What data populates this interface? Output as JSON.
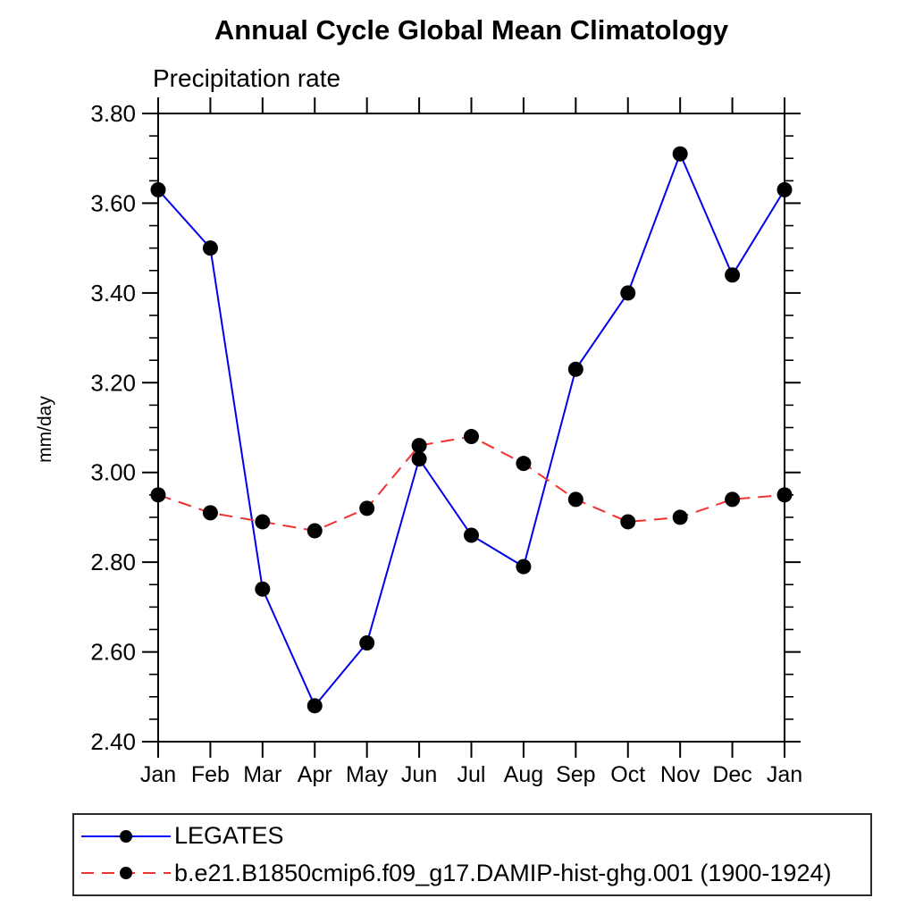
{
  "header": {
    "title": "Annual Cycle Global Mean Climatology",
    "subtitle": "Precipitation rate"
  },
  "chart_data": {
    "type": "line",
    "title": "Annual Cycle Global Mean Climatology",
    "subtitle": "Precipitation rate",
    "ylabel": "mm/day",
    "xlabel": "",
    "x_categories": [
      "Jan",
      "Feb",
      "Mar",
      "Apr",
      "May",
      "Jun",
      "Jul",
      "Aug",
      "Sep",
      "Oct",
      "Nov",
      "Dec",
      "Jan"
    ],
    "ylim": [
      2.4,
      3.8
    ],
    "ytick_interval": 0.2,
    "yminor_interval": 0.05,
    "ytick_labels": [
      "3.80",
      "3.60",
      "3.40",
      "3.20",
      "3.00",
      "2.80",
      "2.60",
      "2.40"
    ],
    "grid": false,
    "legend_position": "bottom-left",
    "series": [
      {
        "name": "LEGATES",
        "style": "solid",
        "color": "#0000EE",
        "marker": "circle",
        "marker_color": "#000000",
        "values": [
          3.63,
          3.5,
          2.74,
          2.48,
          2.62,
          3.03,
          2.86,
          2.79,
          3.23,
          3.4,
          3.71,
          3.44,
          3.63
        ]
      },
      {
        "name": "b.e21.B1850cmip6.f09_g17.DAMIP-hist-ghg.001 (1900-1924)",
        "style": "dashed",
        "color": "#F23232",
        "marker": "circle",
        "marker_color": "#000000",
        "values": [
          2.95,
          2.91,
          2.89,
          2.87,
          2.92,
          3.06,
          3.08,
          3.02,
          2.94,
          2.89,
          2.9,
          2.94,
          2.95
        ]
      }
    ],
    "colors": {
      "axis": "#000000",
      "text": "#000000",
      "background": "#FFFFFF"
    }
  }
}
